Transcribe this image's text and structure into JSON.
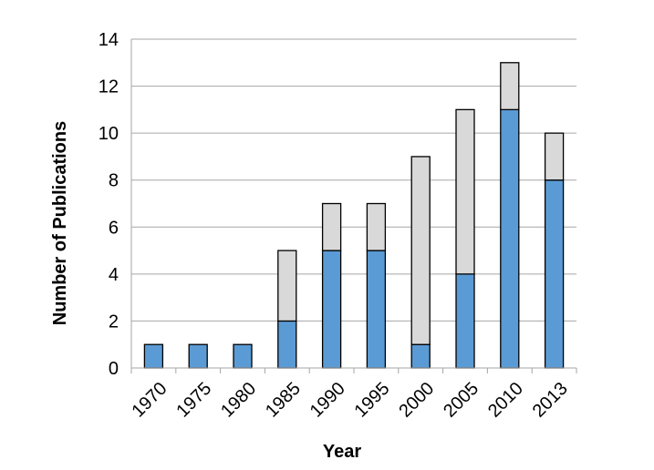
{
  "chart_data": {
    "type": "bar",
    "stacked": true,
    "categories": [
      "1970",
      "1975",
      "1980",
      "1985",
      "1990",
      "1995",
      "2000",
      "2005",
      "2010",
      "2013"
    ],
    "series": [
      {
        "values": [
          1,
          1,
          1,
          2,
          5,
          5,
          1,
          4,
          11,
          8
        ],
        "color": "#5B9BD5"
      },
      {
        "values": [
          0,
          0,
          0,
          3,
          2,
          2,
          8,
          7,
          2,
          2
        ],
        "color": "#D9D9D9"
      }
    ],
    "xlabel": "Year",
    "ylabel": "Number of Publications",
    "ylim": [
      0,
      14
    ],
    "yticks": [
      "0",
      "2",
      "4",
      "6",
      "8",
      "10",
      "12",
      "14"
    ],
    "grid": true,
    "gridColor": "#A6A6A6",
    "barEdgeColor": "#000000",
    "legend": "none"
  }
}
